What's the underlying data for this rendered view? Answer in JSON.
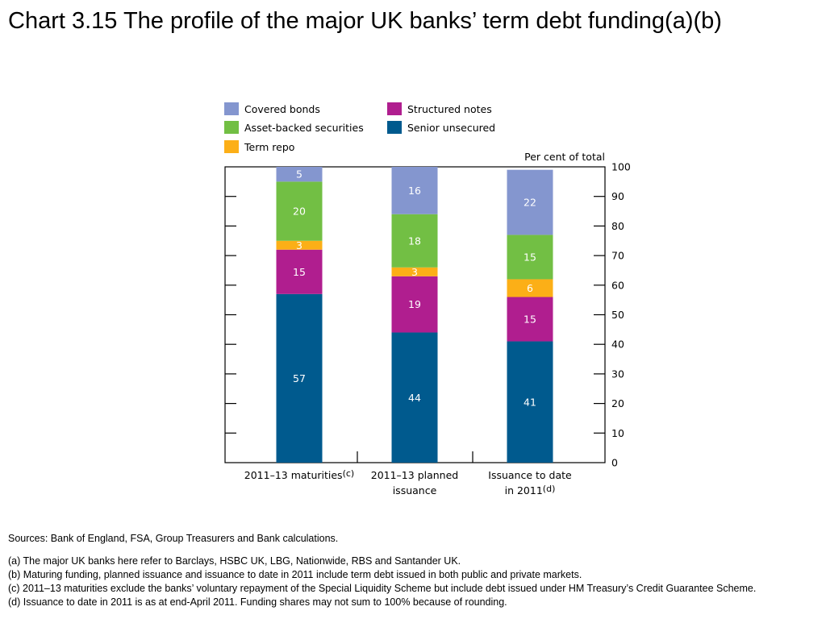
{
  "title": "Chart 3.15  The profile of the major UK banks’ term debt funding(a)(b)",
  "chart_data": {
    "type": "bar",
    "stacked": true,
    "unit_label": "Per cent of total",
    "ylim": [
      0,
      100
    ],
    "yticks": [
      "0",
      "10",
      "20",
      "30",
      "40",
      "50",
      "60",
      "70",
      "80",
      "90",
      "100"
    ],
    "categories": [
      {
        "lines": [
          "2011–13 maturities"
        ],
        "sup": "(c)"
      },
      {
        "lines": [
          "2011–13 planned",
          "issuance"
        ],
        "sup": ""
      },
      {
        "lines": [
          "Issuance to date",
          "in 2011"
        ],
        "sup": "(d)"
      }
    ],
    "series": [
      {
        "name": "Senior unsecured",
        "color": "#005a8e",
        "values": [
          57,
          44,
          41
        ]
      },
      {
        "name": "Structured notes",
        "color": "#b01e8f",
        "values": [
          15,
          19,
          15
        ]
      },
      {
        "name": "Term repo",
        "color": "#fcaf17",
        "values": [
          3,
          3,
          6
        ]
      },
      {
        "name": "Asset-backed securities",
        "color": "#72bf44",
        "values": [
          20,
          18,
          15
        ]
      },
      {
        "name": "Covered bonds",
        "color": "#8496cf",
        "values": [
          5,
          16,
          22
        ]
      }
    ],
    "legend": [
      {
        "name": "Covered bonds",
        "color": "#8496cf"
      },
      {
        "name": "Structured notes",
        "color": "#b01e8f"
      },
      {
        "name": "Asset-backed securities",
        "color": "#72bf44"
      },
      {
        "name": "Senior unsecured",
        "color": "#005a8e"
      },
      {
        "name": "Term repo",
        "color": "#fcaf17"
      }
    ],
    "legend_position": "top"
  },
  "notes": {
    "sources": "Sources:  Bank of England, FSA, Group Treasurers and Bank calculations.",
    "a": "(a)  The major UK banks here refer to Barclays, HSBC UK, LBG, Nationwide, RBS and Santander UK.",
    "b": "(b)  Maturing funding, planned issuance and issuance to date in 2011 include term debt issued in both public and private markets.",
    "c": "(c)  2011–13 maturities exclude the banks’ voluntary repayment of the Special Liquidity Scheme but include debt issued under HM Treasury’s Credit Guarantee Scheme.",
    "d": "(d)  Issuance to date in 2011 is as at end-April 2011.  Funding shares may not sum to 100% because of rounding."
  }
}
